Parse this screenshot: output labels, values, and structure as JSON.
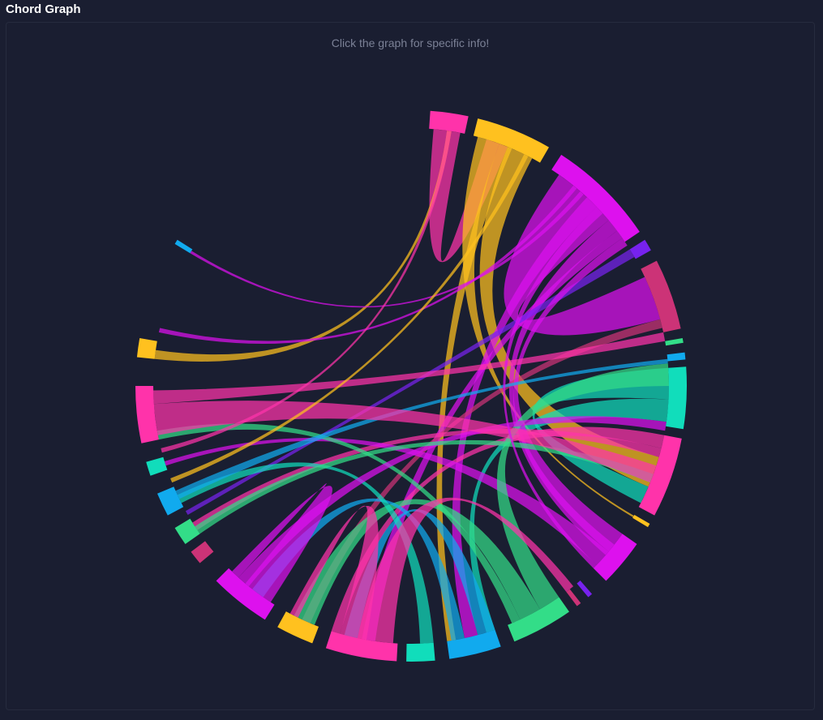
{
  "header": {
    "title": "Chord Graph"
  },
  "panel": {
    "hint": "Click the graph for specific info!"
  },
  "colors": {
    "background": "#1a1e31",
    "border": "#262b3e",
    "palette": [
      "#ff33aa",
      "#ffc11f",
      "#dd11ee",
      "#7722ee",
      "#cc3377",
      "#33dd88",
      "#11aaee",
      "#11ddbb"
    ]
  },
  "chord": {
    "groups": [
      {
        "start": 4,
        "end": 12,
        "color": "#ff33aa"
      },
      {
        "start": 14,
        "end": 30,
        "color": "#ffc11f"
      },
      {
        "start": 33,
        "end": 56,
        "color": "#dd11ee"
      },
      {
        "start": 58,
        "end": 60.5,
        "color": "#7722ee"
      },
      {
        "start": 63,
        "end": 78,
        "color": "#cc3377"
      },
      {
        "start": 80,
        "end": 81,
        "color": "#33dd88"
      },
      {
        "start": 83,
        "end": 84.5,
        "color": "#11aaee"
      },
      {
        "start": 86,
        "end": 99,
        "color": "#11ddbb"
      },
      {
        "start": 101,
        "end": 118,
        "color": "#ff33aa"
      },
      {
        "start": 120,
        "end": 120.8,
        "color": "#ffc11f"
      },
      {
        "start": 125,
        "end": 135,
        "color": "#dd11ee"
      },
      {
        "start": 139,
        "end": 140,
        "color": "#7722ee"
      },
      {
        "start": 142,
        "end": 143,
        "color": "#cc3377"
      },
      {
        "start": 145,
        "end": 158,
        "color": "#33dd88"
      },
      {
        "start": 161,
        "end": 172,
        "color": "#11aaee"
      },
      {
        "start": 175,
        "end": 181,
        "color": "#11ddbb"
      },
      {
        "start": 183,
        "end": 198,
        "color": "#ff33aa"
      },
      {
        "start": 201,
        "end": 209,
        "color": "#ffc11f"
      },
      {
        "start": 212,
        "end": 225,
        "color": "#dd11ee"
      },
      {
        "start": 230,
        "end": 233,
        "color": "#cc3377"
      },
      {
        "start": 235,
        "end": 239,
        "color": "#33dd88"
      },
      {
        "start": 242,
        "end": 247,
        "color": "#11aaee"
      },
      {
        "start": 251,
        "end": 254,
        "color": "#11ddbb"
      },
      {
        "start": 258,
        "end": 270,
        "color": "#ff33aa"
      },
      {
        "start": 276,
        "end": 280,
        "color": "#ffc11f"
      },
      {
        "start": 301,
        "end": 302,
        "color": "#11aaee"
      }
    ],
    "ribbons": [
      {
        "a": [
          5,
          11
        ],
        "b": [
          17,
          22
        ],
        "color": "#ff33aa"
      },
      {
        "a": [
          15,
          20
        ],
        "b": [
          120.2,
          120.6
        ],
        "color": "#ffc11f"
      },
      {
        "a": [
          22,
          28
        ],
        "b": [
          106,
          113
        ],
        "color": "#ffc11f"
      },
      {
        "a": [
          20,
          23
        ],
        "b": [
          170,
          172
        ],
        "color": "#ffc11f"
      },
      {
        "a": [
          35,
          50
        ],
        "b": [
          65,
          75
        ],
        "color": "#dd11ee"
      },
      {
        "a": [
          50,
          53
        ],
        "b": [
          128,
          131
        ],
        "color": "#dd11ee"
      },
      {
        "a": [
          53,
          55
        ],
        "b": [
          188,
          191
        ],
        "color": "#dd11ee"
      },
      {
        "a": [
          43,
          46
        ],
        "b": [
          165,
          168
        ],
        "color": "#dd11ee"
      },
      {
        "a": [
          58,
          60
        ],
        "b": [
          240,
          241
        ],
        "color": "#7722ee"
      },
      {
        "a": [
          75,
          77
        ],
        "b": [
          203,
          205
        ],
        "color": "#cc3377"
      },
      {
        "a": [
          86,
          93
        ],
        "b": [
          113,
          117
        ],
        "color": "#11ddbb"
      },
      {
        "a": [
          93,
          98
        ],
        "b": [
          161,
          163
        ],
        "color": "#11ddbb"
      },
      {
        "a": [
          101,
          104
        ],
        "b": [
          196,
          198
        ],
        "color": "#ff33aa"
      },
      {
        "a": [
          104,
          106
        ],
        "b": [
          236,
          238
        ],
        "color": "#ff33aa"
      },
      {
        "a": [
          125,
          130
        ],
        "b": [
          55,
          57
        ],
        "color": "#dd11ee"
      },
      {
        "a": [
          130,
          134
        ],
        "b": [
          252,
          253
        ],
        "color": "#dd11ee"
      },
      {
        "a": [
          145,
          150
        ],
        "b": [
          85,
          90
        ],
        "color": "#33dd88"
      },
      {
        "a": [
          150,
          155
        ],
        "b": [
          202,
          207
        ],
        "color": "#33dd88"
      },
      {
        "a": [
          155,
          157
        ],
        "b": [
          258,
          260
        ],
        "color": "#33dd88"
      },
      {
        "a": [
          161,
          165
        ],
        "b": [
          192,
          195
        ],
        "color": "#11aaee"
      },
      {
        "a": [
          168,
          171
        ],
        "b": [
          215,
          218
        ],
        "color": "#11aaee"
      },
      {
        "a": [
          175,
          178
        ],
        "b": [
          243,
          245
        ],
        "color": "#11ddbb"
      },
      {
        "a": [
          184,
          192
        ],
        "b": [
          141,
          143
        ],
        "color": "#ff33aa"
      },
      {
        "a": [
          190,
          196
        ],
        "b": [
          206,
          208
        ],
        "color": "#ff33aa"
      },
      {
        "a": [
          213,
          220
        ],
        "b": [
          222,
          224
        ],
        "color": "#dd11ee"
      },
      {
        "a": [
          219,
          222
        ],
        "b": [
          98,
          100
        ],
        "color": "#dd11ee"
      },
      {
        "a": [
          235,
          237
        ],
        "b": [
          110,
          112
        ],
        "color": "#33dd88"
      },
      {
        "a": [
          244,
          246
        ],
        "b": [
          84,
          85
        ],
        "color": "#11aaee"
      },
      {
        "a": [
          259,
          266
        ],
        "b": [
          108,
          112
        ],
        "color": "#ff33aa"
      },
      {
        "a": [
          266,
          269
        ],
        "b": [
          78,
          80
        ],
        "color": "#ff33aa"
      },
      {
        "a": [
          276,
          278
        ],
        "b": [
          8,
          9
        ],
        "color": "#ffc11f"
      },
      {
        "a": [
          301,
          301.6
        ],
        "b": [
          41,
          42
        ],
        "color": "#dd11ee"
      },
      {
        "a": [
          39,
          40
        ],
        "b": [
          282,
          283
        ],
        "color": "#dd11ee"
      },
      {
        "a": [
          8,
          9
        ],
        "b": [
          255,
          256
        ],
        "color": "#ff33aa"
      },
      {
        "a": [
          26,
          27
        ],
        "b": [
          248,
          249
        ],
        "color": "#ffc11f"
      },
      {
        "a": [
          46,
          48
        ],
        "b": [
          134,
          135
        ],
        "color": "#dd11ee"
      }
    ]
  }
}
